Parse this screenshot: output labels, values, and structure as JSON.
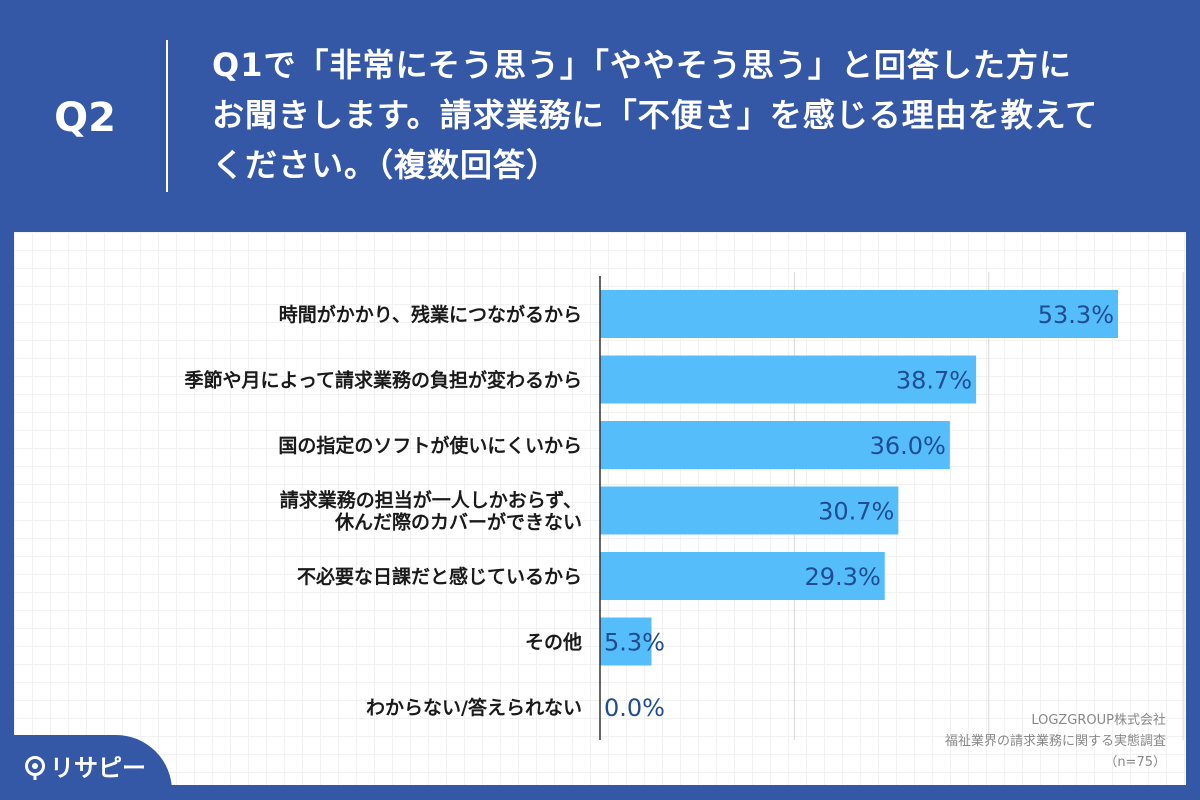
{
  "header": {
    "q_label": "Q2",
    "question_lines": [
      "Q1で「非常にそう思う」「ややそう思う」と回答した方に",
      "お聞きします。請求業務に「不便さ」を感じる理由を教えて",
      "ください。（複数回答）"
    ]
  },
  "chart_data": {
    "type": "bar",
    "orientation": "horizontal",
    "categories": [
      [
        "時間がかかり、残業につながるから"
      ],
      [
        "季節や月によって請求業務の負担が変わるから"
      ],
      [
        "国の指定のソフトが使いにくいから"
      ],
      [
        "請求業務の担当が一人しかおらず、",
        "休んだ際のカバーができない"
      ],
      [
        "不必要な日課だと感じているから"
      ],
      [
        "その他"
      ],
      [
        "わからない/答えられない"
      ]
    ],
    "values": [
      53.3,
      38.7,
      36.0,
      30.7,
      29.3,
      5.3,
      0.0
    ],
    "data_labels": [
      "53.3%",
      "38.7%",
      "36.0%",
      "30.7%",
      "29.3%",
      "5.3%",
      "0.0%"
    ],
    "xlim": [
      0,
      60
    ],
    "grid": true,
    "bar_color": "#56bdfb",
    "label_color": "#1f4d8f"
  },
  "source": {
    "lines": [
      "LOGZGROUP株式会社",
      "福祉業界の請求業務に関する実態調査",
      "（n=75）"
    ]
  },
  "logo": {
    "text": "リサピー",
    "icon": "risapi-logo-icon"
  }
}
